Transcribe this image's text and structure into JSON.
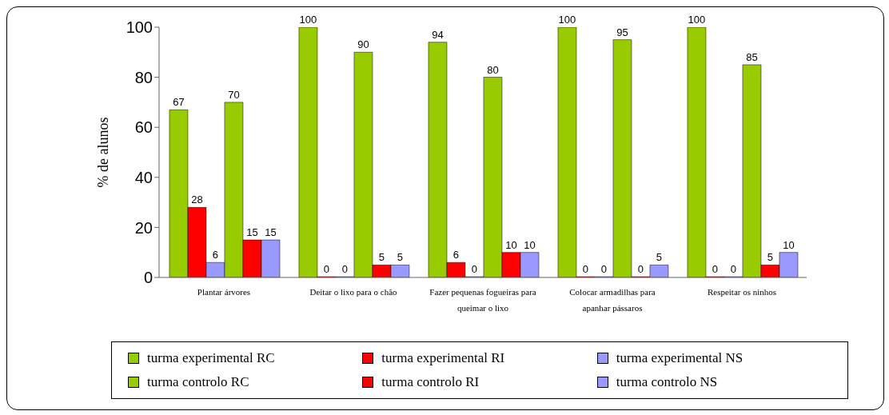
{
  "chart_data": {
    "type": "bar",
    "ylabel": "% de alunos",
    "categories": [
      "Plantar árvores",
      "Deitar o lixo para o chão",
      "Fazer pequenas fogueiras para queimar o lixo",
      "Colocar armadilhas para apanhar pássaros",
      "Respeitar os ninhos"
    ],
    "series": [
      {
        "name": "turma experimental RC",
        "color": "#99cc00",
        "values": [
          67,
          100,
          94,
          100,
          100
        ]
      },
      {
        "name": "turma experimental RI",
        "color": "#ff0000",
        "values": [
          28,
          0,
          6,
          0,
          0
        ]
      },
      {
        "name": "turma experimental NS",
        "color": "#9999ff",
        "values": [
          6,
          0,
          0,
          0,
          0
        ]
      },
      {
        "name": "turma controlo RC",
        "color": "#99cc00",
        "values": [
          70,
          90,
          80,
          95,
          85
        ]
      },
      {
        "name": "turma controlo RI",
        "color": "#ff0000",
        "values": [
          15,
          5,
          10,
          0,
          5
        ]
      },
      {
        "name": "turma controlo NS",
        "color": "#9999ff",
        "values": [
          15,
          5,
          10,
          5,
          10
        ]
      }
    ],
    "ylim": [
      0,
      100
    ],
    "yticks": [
      0,
      20,
      40,
      60,
      80,
      100
    ],
    "grid": false,
    "legend": "bottom",
    "data_labels": true
  }
}
